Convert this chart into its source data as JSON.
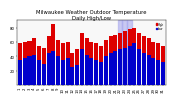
{
  "title": "Milwaukee Weather Outdoor Temperature",
  "subtitle": "Daily High/Low",
  "high_values": [
    58,
    60,
    62,
    65,
    55,
    52,
    68,
    85,
    63,
    58,
    60,
    45,
    50,
    72,
    65,
    60,
    58,
    55,
    63,
    68,
    70,
    72,
    75,
    78,
    80,
    72,
    68,
    65,
    60,
    58,
    55
  ],
  "low_values": [
    35,
    38,
    40,
    42,
    35,
    30,
    45,
    48,
    40,
    35,
    38,
    25,
    28,
    50,
    42,
    38,
    35,
    32,
    40,
    45,
    48,
    50,
    52,
    55,
    58,
    50,
    45,
    42,
    38,
    35,
    32
  ],
  "high_color": "#dd0000",
  "low_color": "#0000cc",
  "highlight_color": "#aaaaee",
  "highlight_indices": [
    21,
    22,
    23
  ],
  "ylim": [
    0,
    90
  ],
  "yticks": [
    20,
    40,
    60,
    80
  ],
  "bar_width": 0.85,
  "bg_color": "#ffffff",
  "plot_bg_color": "#f8f8f8",
  "title_fontsize": 3.8,
  "tick_fontsize": 2.8,
  "legend_high": "High",
  "legend_low": "Low"
}
